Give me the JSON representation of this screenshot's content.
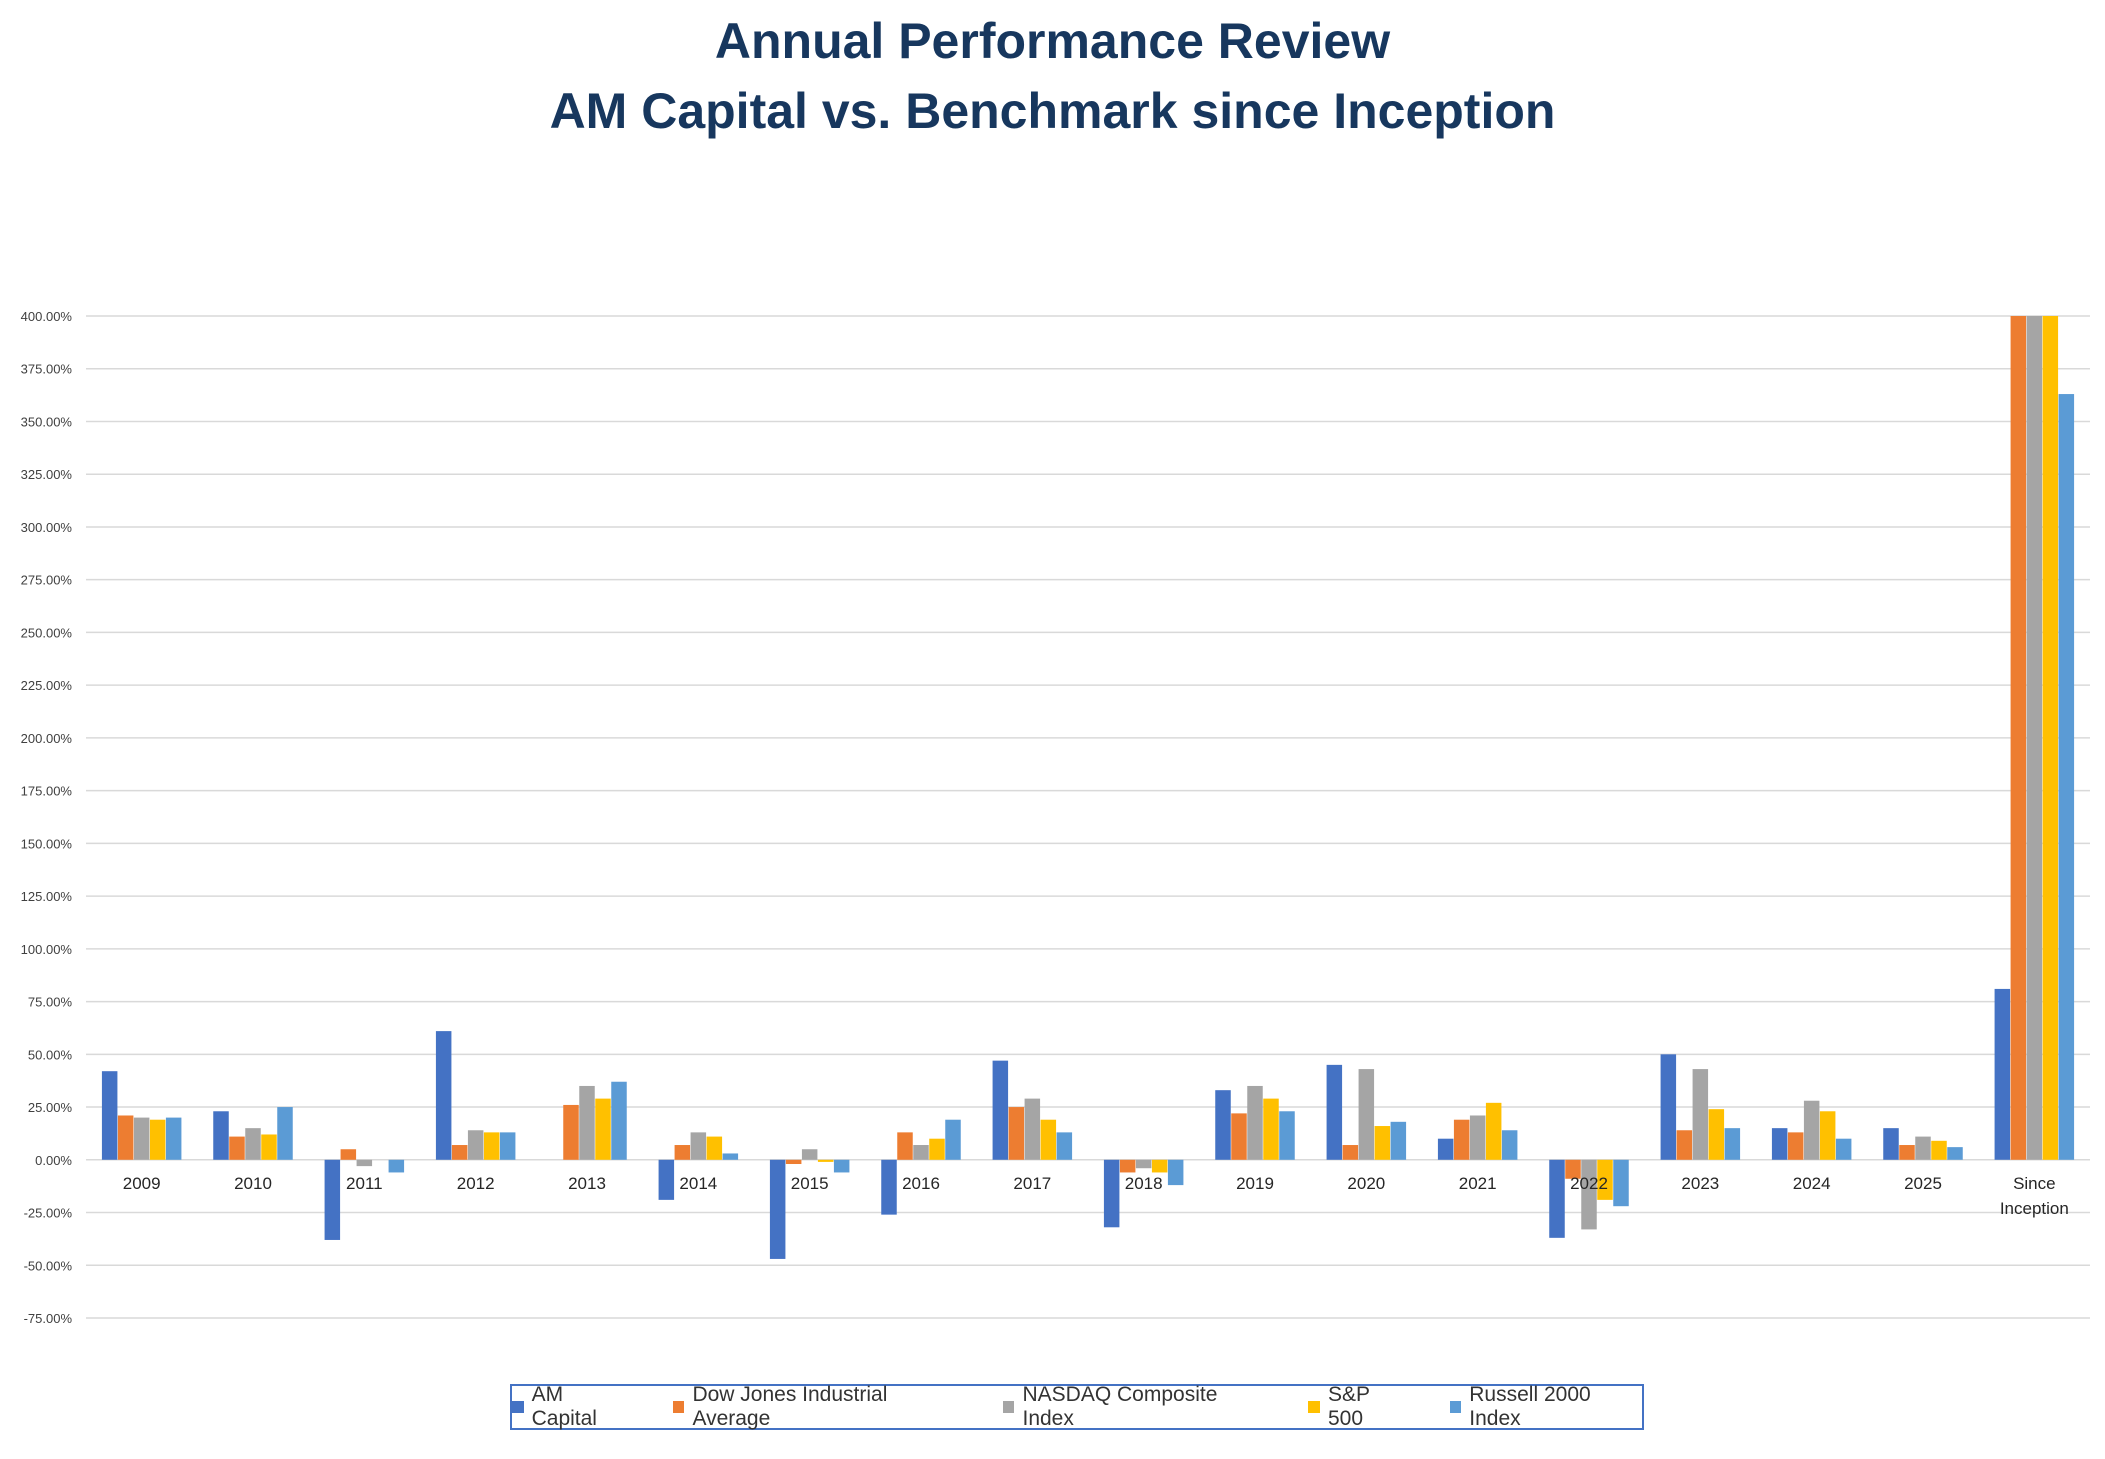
{
  "chart_data": {
    "type": "bar",
    "title": "Annual Performance Review",
    "subtitle": "AM Capital vs. Benchmark since Inception",
    "categories": [
      "2009",
      "2010",
      "2011",
      "2012",
      "2013",
      "2014",
      "2015",
      "2016",
      "2017",
      "2018",
      "2019",
      "2020",
      "2021",
      "2022",
      "2023",
      "2024",
      "2025",
      "Since Inception"
    ],
    "ylim": [
      -75,
      400
    ],
    "yticks": [
      "400.00%",
      "375.00%",
      "350.00%",
      "325.00%",
      "300.00%",
      "275.00%",
      "250.00%",
      "225.00%",
      "200.00%",
      "175.00%",
      "150.00%",
      "125.00%",
      "100.00%",
      "75.00%",
      "50.00%",
      "25.00%",
      "0.00%",
      "-25.00%",
      "-50.00%",
      "-75.00%"
    ],
    "grid": true,
    "legend_position": "bottom",
    "series": [
      {
        "name": "AM Capital",
        "color": "#4472c4",
        "values": [
          42,
          23,
          -38,
          61,
          0,
          -19,
          -47,
          -26,
          47,
          -32,
          33,
          45,
          10,
          -37,
          50,
          15,
          15,
          81
        ]
      },
      {
        "name": "Dow Jones Industrial Average",
        "color": "#ed7d31",
        "values": [
          21,
          11,
          5,
          7,
          26,
          7,
          -2,
          13,
          25,
          -6,
          22,
          7,
          19,
          -9,
          14,
          13,
          7,
          400
        ]
      },
      {
        "name": "NASDAQ Composite Index",
        "color": "#a5a5a5",
        "values": [
          20,
          15,
          -3,
          14,
          35,
          13,
          5,
          7,
          29,
          -4,
          35,
          43,
          21,
          -33,
          43,
          28,
          11,
          400
        ]
      },
      {
        "name": "S&P 500",
        "color": "#ffc000",
        "values": [
          19,
          12,
          0,
          13,
          29,
          11,
          -1,
          10,
          19,
          -6,
          29,
          16,
          27,
          -19,
          24,
          23,
          9,
          400
        ]
      },
      {
        "name": "Russell 2000 Index",
        "color": "#5b9bd5",
        "values": [
          20,
          25,
          -6,
          13,
          37,
          3,
          -6,
          19,
          13,
          -12,
          23,
          18,
          14,
          -22,
          15,
          10,
          6,
          363
        ]
      }
    ]
  }
}
